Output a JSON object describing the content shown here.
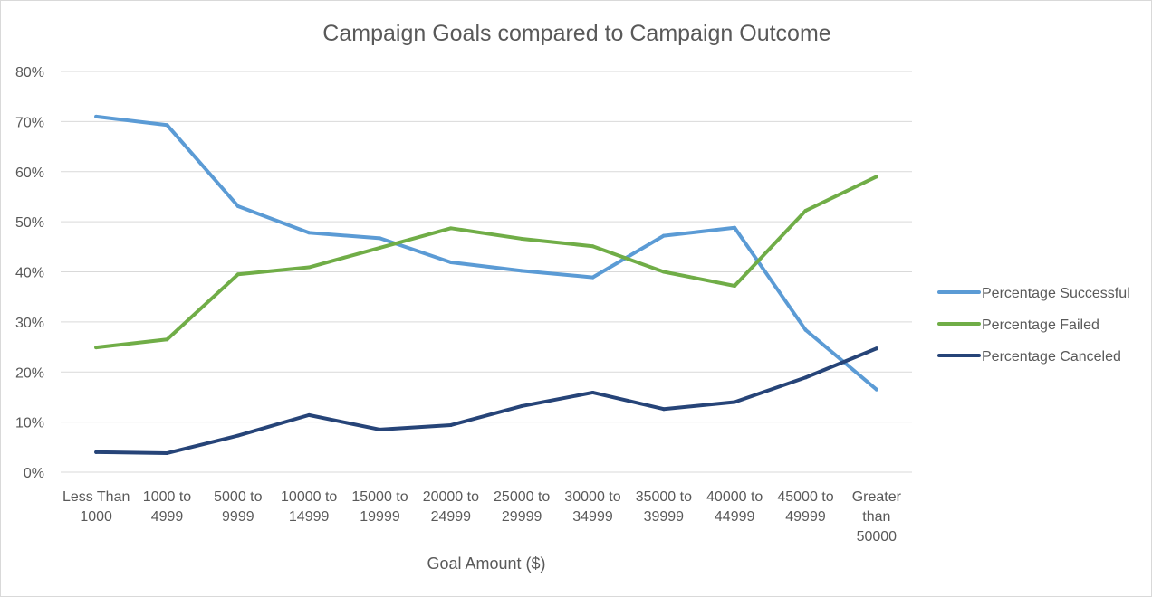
{
  "chart_data": {
    "type": "line",
    "title": "Campaign Goals compared to Campaign Outcome",
    "xlabel": "Goal Amount ($)",
    "ylabel": "",
    "categories": [
      [
        "Less Than",
        "1000"
      ],
      [
        "1000 to",
        "4999"
      ],
      [
        "5000 to",
        "9999"
      ],
      [
        "10000 to",
        "14999"
      ],
      [
        "15000 to",
        "19999"
      ],
      [
        "20000 to",
        "24999"
      ],
      [
        "25000 to",
        "29999"
      ],
      [
        "30000 to",
        "34999"
      ],
      [
        "35000 to",
        "39999"
      ],
      [
        "40000 to",
        "44999"
      ],
      [
        "45000 to",
        "49999"
      ],
      [
        "Greater",
        "than",
        "50000"
      ]
    ],
    "ylim": [
      0,
      80
    ],
    "yticks": [
      0,
      10,
      20,
      30,
      40,
      50,
      60,
      70,
      80
    ],
    "ytick_suffix": "%",
    "grid": true,
    "legend_position": "right",
    "series": [
      {
        "name": "Percentage Successful",
        "color": "#5b9bd5",
        "values": [
          71.0,
          69.3,
          53.1,
          47.8,
          46.7,
          41.9,
          40.2,
          38.9,
          47.2,
          48.8,
          28.4,
          16.5
        ]
      },
      {
        "name": "Percentage Failed",
        "color": "#70ad47",
        "values": [
          24.9,
          26.5,
          39.5,
          40.9,
          44.8,
          48.7,
          46.6,
          45.1,
          40.0,
          37.2,
          52.2,
          59.0
        ]
      },
      {
        "name": "Percentage Canceled",
        "color": "#264478",
        "values": [
          4.0,
          3.8,
          7.3,
          11.4,
          8.5,
          9.4,
          13.2,
          15.9,
          12.6,
          14.0,
          18.9,
          24.7
        ]
      }
    ]
  }
}
